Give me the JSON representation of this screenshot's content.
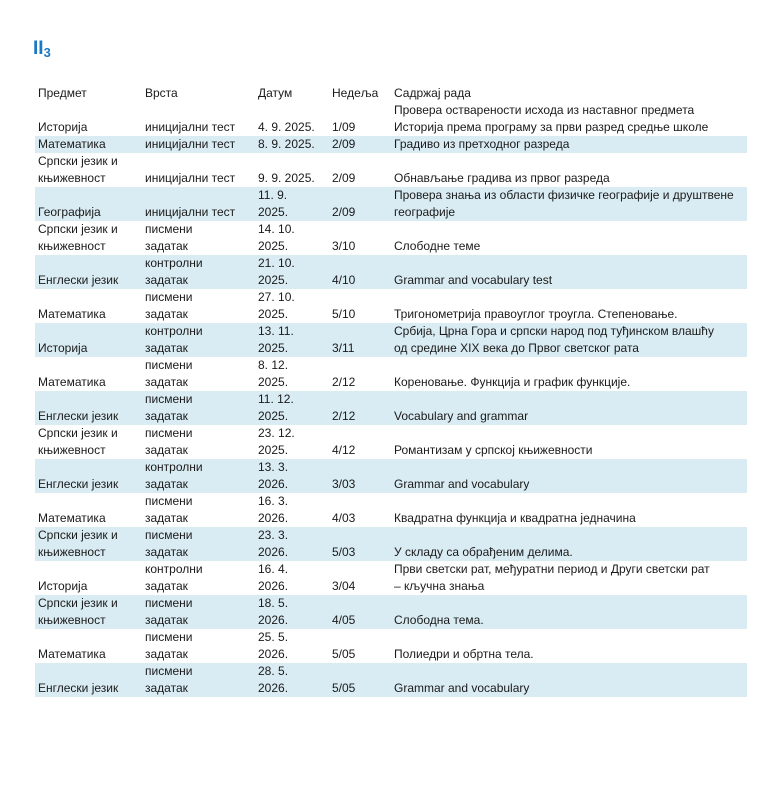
{
  "page": {
    "title": "II",
    "title_subscript": "3"
  },
  "colors": {
    "accent_blue": "#1b79c4",
    "row_highlight": "#daecf3",
    "text": "#1a1a1a"
  },
  "table": {
    "headers": {
      "subject": "Предмет",
      "type": "Врста",
      "date": "Датум",
      "week": "Недеља",
      "content": "Садржај рада"
    },
    "rows": [
      {
        "subject": "Историја",
        "type": "иницијални тест",
        "date": "4. 9. 2025.",
        "week": "1/09",
        "content": "Провера остварености исхода из наставног предмета\nИсторија према програму за први разред средње школе",
        "highlighted": false
      },
      {
        "subject": "Математика",
        "type": "иницијални тест",
        "date": "8. 9. 2025.",
        "week": "2/09",
        "content": "Градиво из претходног разреда",
        "highlighted": true
      },
      {
        "subject": "Српски језик и\nкњижевност",
        "type": "иницијални тест",
        "date": "9. 9. 2025.",
        "week": "2/09",
        "content": "Обнављање градива из првог разреда",
        "highlighted": false
      },
      {
        "subject": "Географија",
        "type": "иницијални тест",
        "date": "11. 9.\n2025.",
        "week": "2/09",
        "content": "Провера знања из области физичке географије и друштвене\nгеографије",
        "highlighted": true
      },
      {
        "subject": "Српски језик и\nкњижевност",
        "type": "писмени\nзадатак",
        "date": "14. 10.\n2025.",
        "week": "3/10",
        "content": "Слободне теме",
        "highlighted": false
      },
      {
        "subject": "Енглески језик",
        "type": "контролни\nзадатак",
        "date": "21. 10.\n2025.",
        "week": "4/10",
        "content": "Grammar and vocabulary test",
        "highlighted": true
      },
      {
        "subject": "Математика",
        "type": "писмени\nзадатак",
        "date": "27. 10.\n2025.",
        "week": "5/10",
        "content": "Тригонометрија правоуглог троугла. Степеновање.",
        "highlighted": false
      },
      {
        "subject": "Историја",
        "type": "контролни\nзадатак",
        "date": "13. 11.\n2025.",
        "week": "3/11",
        "content": "Србија, Црна Гора и српски народ под туђинском влашћу\nод средине XIX века до Првог светског рата",
        "highlighted": true
      },
      {
        "subject": "Математика",
        "type": "писмени\nзадатак",
        "date": "8. 12.\n2025.",
        "week": "2/12",
        "content": "Кореновање. Функција и график функције.",
        "highlighted": false
      },
      {
        "subject": "Енглески језик",
        "type": "писмени\nзадатак",
        "date": "11. 12.\n2025.",
        "week": "2/12",
        "content": "Vocabulary and grammar",
        "highlighted": true
      },
      {
        "subject": "Српски језик и\nкњижевност",
        "type": "писмени\nзадатак",
        "date": "23. 12.\n2025.",
        "week": "4/12",
        "content": "Романтизам у српској књижевности",
        "highlighted": false
      },
      {
        "subject": "Енглески језик",
        "type": "контролни\nзадатак",
        "date": "13. 3.\n2026.",
        "week": "3/03",
        "content": "Grammar and vocabulary",
        "highlighted": true
      },
      {
        "subject": "Математика",
        "type": "писмени\nзадатак",
        "date": "16. 3.\n2026.",
        "week": "4/03",
        "content": "Квадратна функција и квадратна једначина",
        "highlighted": false
      },
      {
        "subject": "Српски језик и\nкњижевност",
        "type": "писмени\nзадатак",
        "date": "23. 3.\n2026.",
        "week": "5/03",
        "content": "У складу са обрађеним делима.",
        "highlighted": true
      },
      {
        "subject": "Историја",
        "type": "контролни\nзадатак",
        "date": "16. 4.\n2026.",
        "week": "3/04",
        "content": "Први светски рат, међуратни период и Други светски рат\n– кључна знања",
        "highlighted": false
      },
      {
        "subject": "Српски језик и\nкњижевност",
        "type": "писмени\nзадатак",
        "date": "18. 5.\n2026.",
        "week": "4/05",
        "content": "Слободна тема.",
        "highlighted": true
      },
      {
        "subject": "Математика",
        "type": "писмени\nзадатак",
        "date": "25. 5.\n2026.",
        "week": "5/05",
        "content": "Полиедри и обртна тела.",
        "highlighted": false
      },
      {
        "subject": "Енглески језик",
        "type": "писмени\nзадатак",
        "date": "28. 5.\n2026.",
        "week": "5/05",
        "content": "Grammar and vocabulary",
        "highlighted": true
      }
    ]
  }
}
